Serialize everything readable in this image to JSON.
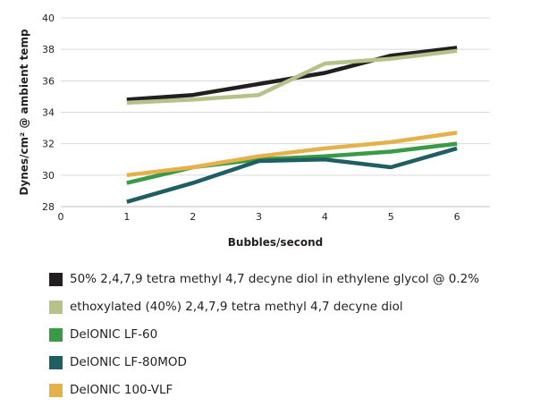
{
  "chart_data": {
    "type": "line",
    "title": "",
    "xlabel": "Bubbles/second",
    "ylabel": "Dynes/cm² @ ambient temp",
    "xlim": [
      0,
      6.5
    ],
    "ylim": [
      28,
      40
    ],
    "x_ticks": [
      0,
      1,
      2,
      3,
      4,
      5,
      6
    ],
    "y_ticks": [
      28,
      30,
      32,
      34,
      36,
      38,
      40
    ],
    "grid": "horizontal",
    "legend_position": "bottom",
    "series": [
      {
        "name": "50% 2,4,7,9 tetra methyl 4,7 decyne diol in ethylene glycol @ 0.2%",
        "color": "#231f20",
        "x": [
          1,
          2,
          3,
          4,
          5,
          6
        ],
        "y": [
          34.8,
          35.1,
          35.8,
          36.5,
          37.6,
          38.1
        ]
      },
      {
        "name": "ethoxylated (40%) 2,4,7,9 tetra methyl 4,7 decyne diol",
        "color": "#b5c289",
        "x": [
          1,
          2,
          3,
          4,
          5,
          6
        ],
        "y": [
          34.6,
          34.8,
          35.1,
          37.1,
          37.4,
          37.9
        ]
      },
      {
        "name": "DelONIC LF-60",
        "color": "#3a9a46",
        "x": [
          1,
          2,
          3,
          4,
          5,
          6
        ],
        "y": [
          29.5,
          30.5,
          31.0,
          31.2,
          31.5,
          32.0
        ]
      },
      {
        "name": "DelONIC LF-80MOD",
        "color": "#1f5e63",
        "x": [
          1,
          2,
          3,
          4,
          5,
          6
        ],
        "y": [
          28.3,
          29.5,
          30.9,
          31.0,
          30.5,
          31.7
        ]
      },
      {
        "name": "DelONIC 100-VLF",
        "color": "#e5b14a",
        "x": [
          1,
          2,
          3,
          4,
          5,
          6
        ],
        "y": [
          30.0,
          30.5,
          31.2,
          31.7,
          32.1,
          32.7
        ]
      }
    ]
  }
}
